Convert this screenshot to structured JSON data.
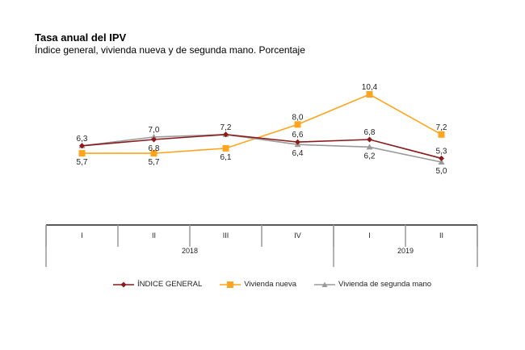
{
  "chart_data": {
    "type": "line",
    "title": "Tasa anual del IPV",
    "subtitle": "Índice general, vivienda nueva y de segunda mano. Porcentaje",
    "xlabel": "",
    "ylabel": "",
    "categories": [
      "I",
      "II",
      "III",
      "IV",
      "I",
      "II"
    ],
    "years": [
      {
        "label": "2018",
        "span": 4
      },
      {
        "label": "2019",
        "span": 2
      }
    ],
    "ylim": [
      5.0,
      10.4
    ],
    "grid": false,
    "legend_position": "bottom",
    "series": [
      {
        "name": "ÍNDICE GENERAL",
        "color": "#8b1a1a",
        "marker": "diamond",
        "values": [
          6.3,
          6.8,
          7.2,
          6.6,
          6.8,
          5.3
        ],
        "labels": [
          "",
          "6,8",
          "",
          "6,6",
          "6,8",
          "5,3"
        ],
        "label_pos": [
          "above",
          "below",
          "above",
          "above",
          "above",
          "above"
        ]
      },
      {
        "name": "Vivienda nueva",
        "color": "#ffa41c",
        "marker": "square",
        "values": [
          5.7,
          5.7,
          6.1,
          8.0,
          10.4,
          7.2
        ],
        "labels": [
          "5,7",
          "5,7",
          "6,1",
          "8,0",
          "10,4",
          "7,2"
        ],
        "label_pos": [
          "below",
          "below",
          "below",
          "above",
          "above",
          "above"
        ]
      },
      {
        "name": "Vivienda de segunda mano",
        "color": "#9a9a9a",
        "marker": "triangle",
        "values": [
          6.3,
          7.0,
          7.2,
          6.4,
          6.2,
          5.0
        ],
        "labels": [
          "6,3",
          "7,0",
          "7,2",
          "6,4",
          "6,2",
          "5,0"
        ],
        "label_pos": [
          "above",
          "above",
          "above",
          "below",
          "below",
          "below"
        ]
      }
    ]
  }
}
